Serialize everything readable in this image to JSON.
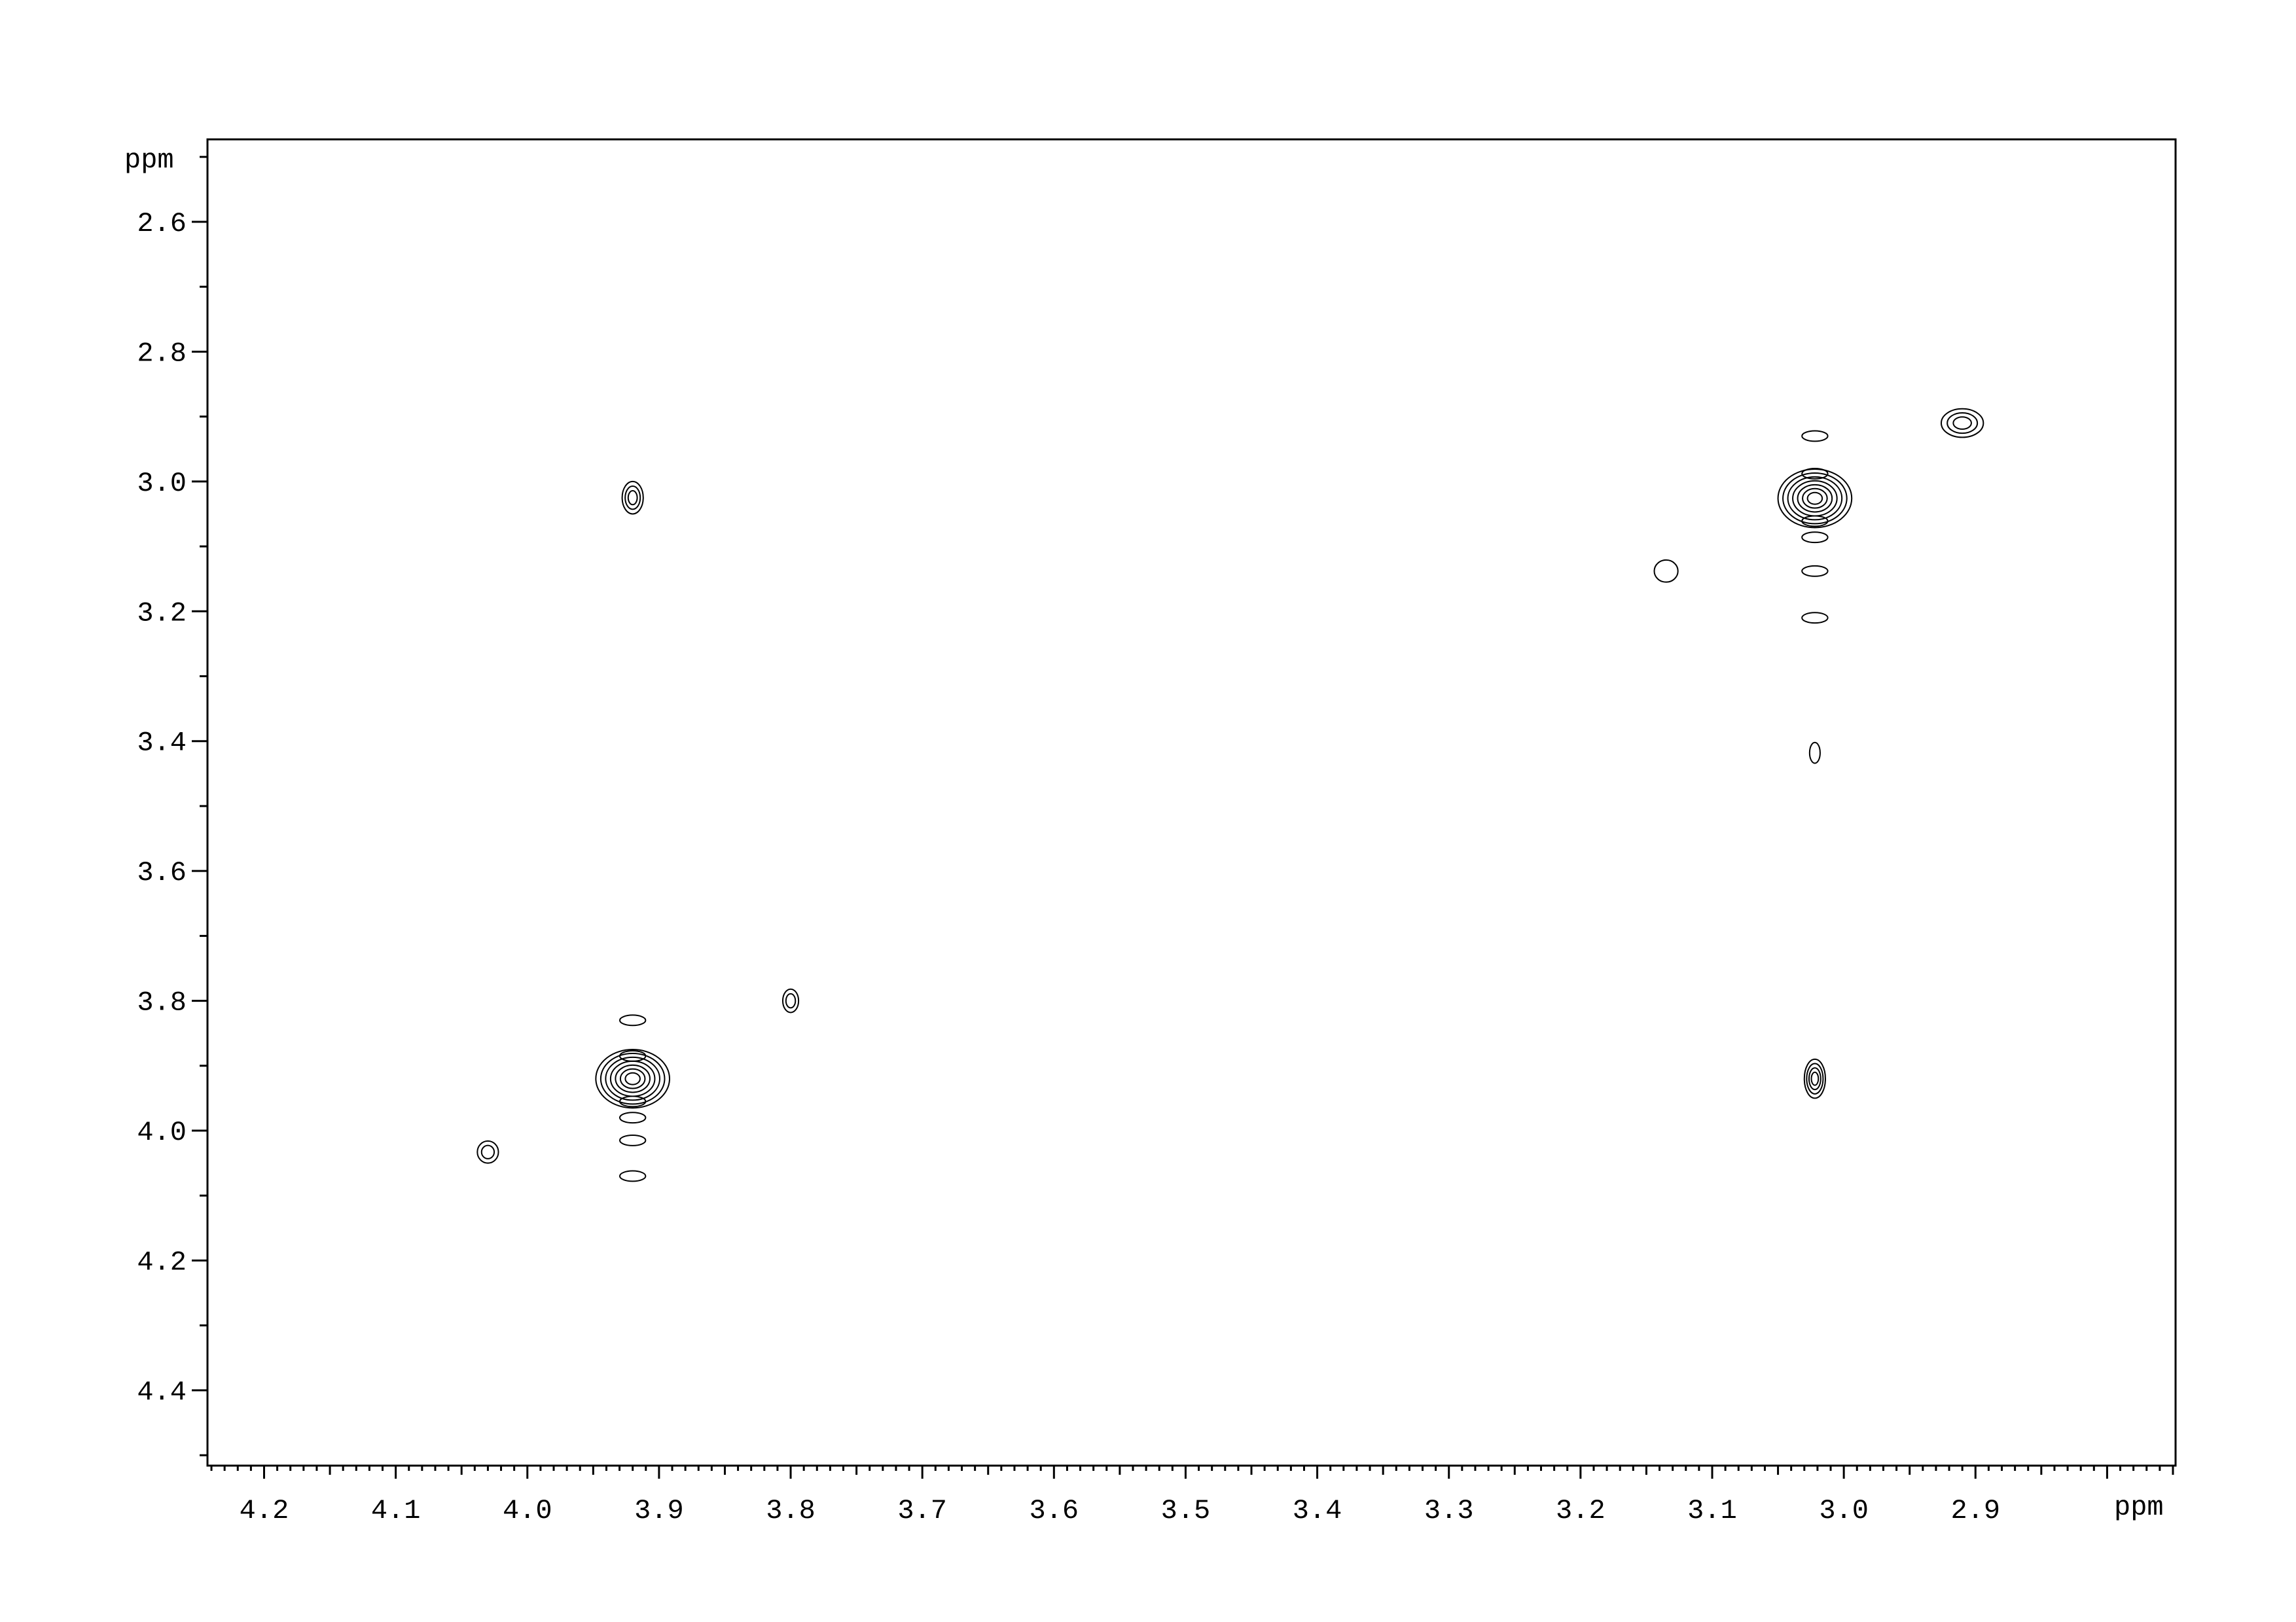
{
  "chart_data": {
    "type": "contour",
    "title": "",
    "xlabel": "ppm",
    "ylabel": "ppm",
    "xlim": [
      4.243,
      2.748
    ],
    "ylim": [
      2.473,
      4.516
    ],
    "x_reversed": true,
    "y_reversed": true,
    "grid": false,
    "line_color": "#000000",
    "x_ticks": [
      "4.2",
      "4.1",
      "4.0",
      "3.9",
      "3.8",
      "3.7",
      "3.6",
      "3.5",
      "3.4",
      "3.3",
      "3.2",
      "3.1",
      "3.0",
      "2.9"
    ],
    "y_ticks": [
      "2.6",
      "2.8",
      "3.0",
      "3.2",
      "3.4",
      "3.6",
      "3.8",
      "4.0",
      "4.2",
      "4.4"
    ],
    "peaks": [
      {
        "x": 3.92,
        "y": 3.92,
        "levels": 7,
        "wx": 0.028,
        "wy": 0.045,
        "streak": [
          3.83,
          4.07
        ]
      },
      {
        "x": 3.022,
        "y": 3.026,
        "levels": 7,
        "wx": 0.028,
        "wy": 0.045,
        "streak": [
          2.93,
          3.21
        ]
      },
      {
        "x": 2.91,
        "y": 2.91,
        "levels": 3,
        "wx": 0.016,
        "wy": 0.022
      },
      {
        "x": 3.92,
        "y": 3.025,
        "levels": 3,
        "wx": 0.008,
        "wy": 0.025
      },
      {
        "x": 3.022,
        "y": 3.92,
        "levels": 4,
        "wx": 0.008,
        "wy": 0.03
      },
      {
        "x": 3.8,
        "y": 3.8,
        "levels": 2,
        "wx": 0.006,
        "wy": 0.018
      },
      {
        "x": 4.03,
        "y": 4.033,
        "levels": 2,
        "wx": 0.008,
        "wy": 0.017
      },
      {
        "x": 3.135,
        "y": 3.138,
        "levels": 1,
        "wx": 0.009,
        "wy": 0.017
      },
      {
        "x": 3.022,
        "y": 3.418,
        "levels": 1,
        "wx": 0.004,
        "wy": 0.016
      }
    ]
  }
}
